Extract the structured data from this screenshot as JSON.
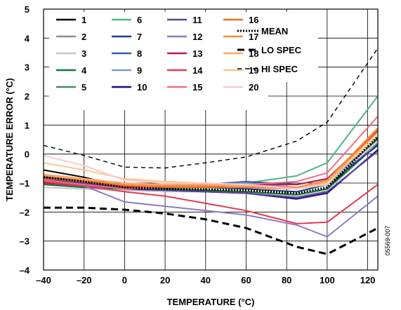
{
  "chart_data": {
    "type": "line",
    "xlabel": "TEMPERATURE (°C)",
    "ylabel": "TEMPERATURE ERROR (°C)",
    "xlim": [
      -40,
      125
    ],
    "ylim": [
      -4,
      5
    ],
    "x_ticks": [
      -40,
      -20,
      0,
      20,
      40,
      60,
      80,
      100,
      120
    ],
    "x_tick_labels": [
      "–40",
      "–20",
      "0",
      "20",
      "40",
      "60",
      "80",
      "100",
      "120"
    ],
    "y_ticks": [
      -4,
      -3,
      -2,
      -1,
      0,
      1,
      2,
      3,
      4,
      5
    ],
    "y_tick_labels": [
      "–4",
      "–3",
      "–2",
      "–1",
      "0",
      "1",
      "2",
      "3",
      "4",
      "5"
    ],
    "grid": true,
    "legend_placement": "top",
    "x": [
      -40,
      -20,
      0,
      20,
      40,
      60,
      85,
      100,
      125
    ],
    "series": [
      {
        "name": "1",
        "color": "#000000",
        "values": [
          -0.55,
          -0.8,
          -1.15,
          -1.2,
          -1.25,
          -1.3,
          -1.45,
          -1.2,
          0.55
        ]
      },
      {
        "name": "2",
        "color": "#8c8c8c",
        "values": [
          -0.75,
          -0.95,
          -1.2,
          -1.25,
          -1.3,
          -1.35,
          -1.45,
          -1.25,
          0.45
        ]
      },
      {
        "name": "3",
        "color": "#c6c6c6",
        "values": [
          -1.15,
          -1.2,
          -1.25,
          -1.3,
          -1.3,
          -1.35,
          -1.45,
          -1.25,
          0.35
        ]
      },
      {
        "name": "4",
        "color": "#0b7a3a",
        "values": [
          -1.05,
          -1.15,
          -1.2,
          -1.2,
          -1.25,
          -1.3,
          -1.4,
          -1.2,
          0.35
        ]
      },
      {
        "name": "5",
        "color": "#3a8f5a",
        "values": [
          -1.0,
          -1.1,
          -1.15,
          -1.15,
          -1.15,
          -1.05,
          -1.2,
          -1.0,
          0.5
        ]
      },
      {
        "name": "6",
        "color": "#52b486",
        "values": [
          -1.0,
          -1.05,
          -1.15,
          -1.1,
          -1.1,
          -1.0,
          -0.75,
          -0.3,
          2.0
        ]
      },
      {
        "name": "7",
        "color": "#1f3f8a",
        "values": [
          -0.8,
          -0.95,
          -1.2,
          -1.15,
          -1.15,
          -1.2,
          -1.3,
          -1.05,
          0.3
        ]
      },
      {
        "name": "8",
        "color": "#2f5eb0",
        "values": [
          -0.9,
          -1.0,
          -1.15,
          -1.1,
          -1.05,
          -0.95,
          -1.05,
          -0.85,
          0.4
        ]
      },
      {
        "name": "9",
        "color": "#7a99d8",
        "values": [
          -0.95,
          -1.05,
          -1.15,
          -1.05,
          -1.05,
          -1.0,
          -1.15,
          -0.95,
          0.4
        ]
      },
      {
        "name": "10",
        "color": "#1c0f74",
        "values": [
          -0.85,
          -1.0,
          -1.2,
          -1.25,
          -1.3,
          -1.35,
          -1.55,
          -1.35,
          0.15
        ]
      },
      {
        "name": "11",
        "color": "#5a3fa3",
        "values": [
          -0.85,
          -1.0,
          -1.15,
          -1.25,
          -1.3,
          -1.35,
          -1.5,
          -1.3,
          0.1
        ]
      },
      {
        "name": "12",
        "color": "#9078c4",
        "values": [
          -1.0,
          -1.1,
          -1.65,
          -1.8,
          -1.95,
          -2.1,
          -2.45,
          -2.85,
          -1.45
        ]
      },
      {
        "name": "13",
        "color": "#c0184a",
        "values": [
          -1.0,
          -1.1,
          -1.15,
          -1.15,
          -1.1,
          -1.05,
          -1.05,
          -0.85,
          0.8
        ]
      },
      {
        "name": "14",
        "color": "#e33a55",
        "values": [
          -0.95,
          -1.1,
          -1.3,
          -1.45,
          -1.7,
          -1.95,
          -2.4,
          -2.35,
          -1.05
        ]
      },
      {
        "name": "15",
        "color": "#ee6f80",
        "values": [
          -0.9,
          -1.05,
          -1.2,
          -1.15,
          -1.1,
          -1.05,
          -0.95,
          -0.65,
          1.3
        ]
      },
      {
        "name": "16",
        "color": "#f26a21",
        "values": [
          -0.85,
          -0.95,
          -1.1,
          -1.15,
          -1.15,
          -1.15,
          -1.2,
          -0.95,
          0.85
        ]
      },
      {
        "name": "17",
        "color": "#f58d3c",
        "values": [
          -0.75,
          -0.9,
          -1.05,
          -1.1,
          -1.1,
          -1.1,
          -1.15,
          -0.9,
          0.9
        ]
      },
      {
        "name": "18",
        "color": "#f7ab6d",
        "values": [
          -0.7,
          -0.85,
          -1.0,
          -1.05,
          -1.05,
          -1.1,
          -1.2,
          -0.95,
          0.75
        ]
      },
      {
        "name": "19",
        "color": "#fbc78c",
        "values": [
          -0.3,
          -0.55,
          -0.85,
          -0.95,
          -1.0,
          -1.05,
          -1.2,
          -1.0,
          0.65
        ]
      },
      {
        "name": "20",
        "color": "#f7c9d2",
        "values": [
          -0.05,
          -0.4,
          -0.9,
          -1.0,
          -1.0,
          -1.05,
          -1.2,
          -1.05,
          0.45
        ]
      }
    ],
    "reference_series": [
      {
        "name": "MEAN",
        "style": "dotted",
        "color": "#000000",
        "x": [
          -40,
          -20,
          0,
          20,
          40,
          60,
          85,
          100,
          125
        ],
        "values": [
          -0.8,
          -0.95,
          -1.15,
          -1.2,
          -1.22,
          -1.25,
          -1.35,
          -1.15,
          0.6
        ]
      },
      {
        "name": "LO SPEC",
        "style": "dashed",
        "color": "#000000",
        "x": [
          -40,
          -20,
          0,
          20,
          40,
          60,
          85,
          100,
          125
        ],
        "values": [
          -1.85,
          -1.85,
          -1.92,
          -2.05,
          -2.25,
          -2.55,
          -3.2,
          -3.45,
          -2.55
        ]
      },
      {
        "name": "HI SPEC",
        "style": "dashed-thin",
        "color": "#000000",
        "x": [
          -40,
          -20,
          0,
          20,
          40,
          60,
          85,
          100,
          125
        ],
        "values": [
          0.3,
          -0.05,
          -0.45,
          -0.48,
          -0.3,
          -0.1,
          0.45,
          1.1,
          3.65
        ]
      }
    ],
    "figure_code": "05569-007"
  }
}
